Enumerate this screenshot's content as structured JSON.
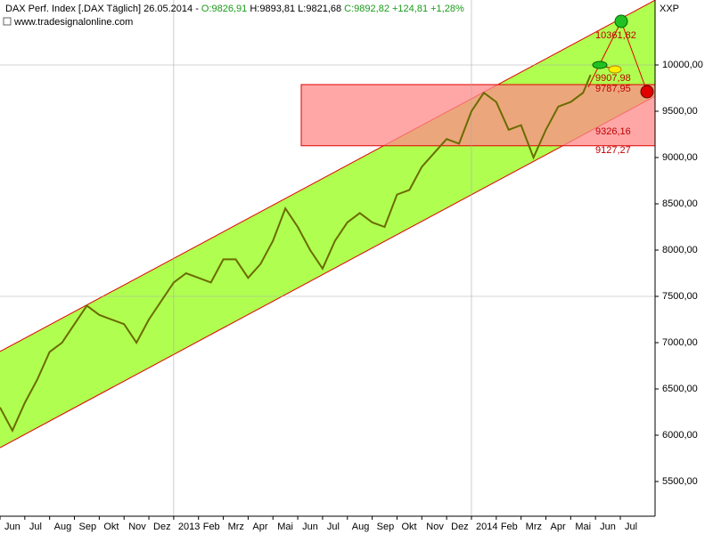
{
  "chart_data": {
    "type": "line",
    "title": [
      "DAX Perf. Index [.DAX  Täglich] 26.05.2014 - ",
      "O:9826,91",
      " H:9893,81 L:9821,68 ",
      "C:9892,82 +124,81 +1,28%"
    ],
    "subtitle": "www.tradesignalonline.com",
    "axis_label": "XXP",
    "xlim": [
      0,
      26.4
    ],
    "ylim": [
      5125,
      10702
    ],
    "xticks": [
      {
        "value": 0,
        "label": "Jun"
      },
      {
        "value": 1,
        "label": "Jul"
      },
      {
        "value": 2,
        "label": "Aug"
      },
      {
        "value": 3,
        "label": "Sep"
      },
      {
        "value": 4,
        "label": "Okt"
      },
      {
        "value": 5,
        "label": "Nov"
      },
      {
        "value": 6,
        "label": "Dez"
      },
      {
        "value": 7,
        "label": "2013"
      },
      {
        "value": 8,
        "label": "Feb"
      },
      {
        "value": 9,
        "label": "Mrz"
      },
      {
        "value": 10,
        "label": "Apr"
      },
      {
        "value": 11,
        "label": "Mai"
      },
      {
        "value": 12,
        "label": "Jun"
      },
      {
        "value": 13,
        "label": "Jul"
      },
      {
        "value": 14,
        "label": "Aug"
      },
      {
        "value": 15,
        "label": "Sep"
      },
      {
        "value": 16,
        "label": "Okt"
      },
      {
        "value": 17,
        "label": "Nov"
      },
      {
        "value": 18,
        "label": "Dez"
      },
      {
        "value": 19,
        "label": "2014"
      },
      {
        "value": 20,
        "label": "Feb"
      },
      {
        "value": 21,
        "label": "Mrz"
      },
      {
        "value": 22,
        "label": "Apr"
      },
      {
        "value": 23,
        "label": "Mai"
      },
      {
        "value": 24,
        "label": "Jun"
      },
      {
        "value": 25,
        "label": "Jul"
      }
    ],
    "yticks": [
      {
        "value": 5500,
        "label": "5500,00"
      },
      {
        "value": 6000,
        "label": "6000,00"
      },
      {
        "value": 6500,
        "label": "6500,00"
      },
      {
        "value": 7000,
        "label": "7000,00"
      },
      {
        "value": 7500,
        "label": "7500,00"
      },
      {
        "value": 8000,
        "label": "8000,00"
      },
      {
        "value": 8500,
        "label": "8500,00"
      },
      {
        "value": 9000,
        "label": "9000,00"
      },
      {
        "value": 9500,
        "label": "9500,00"
      },
      {
        "value": 10000,
        "label": "10000,00"
      }
    ],
    "hgrid": [
      7500,
      10000
    ],
    "vgrid": [
      7,
      19
    ],
    "series": [
      {
        "name": "DAX",
        "color": "#6b6b00",
        "x": [
          0,
          0.5,
          1,
          1.5,
          2,
          2.5,
          3,
          3.5,
          4,
          4.5,
          5,
          5.5,
          6,
          6.5,
          7,
          7.5,
          8,
          8.5,
          9,
          9.5,
          10,
          10.5,
          11,
          11.5,
          12,
          12.5,
          13,
          13.5,
          14,
          14.5,
          15,
          15.5,
          16,
          16.5,
          17,
          17.5,
          18,
          18.5,
          19,
          19.5,
          20,
          20.5,
          21,
          21.5,
          22,
          22.5,
          23,
          23.5,
          23.8
        ],
        "values": [
          6300,
          6050,
          6350,
          6600,
          6900,
          7000,
          7200,
          7400,
          7300,
          7250,
          7200,
          7000,
          7250,
          7450,
          7650,
          7750,
          7700,
          7650,
          7900,
          7900,
          7700,
          7850,
          8100,
          8450,
          8250,
          8000,
          7800,
          8100,
          8300,
          8400,
          8300,
          8250,
          8600,
          8650,
          8900,
          9050,
          9200,
          9150,
          9500,
          9700,
          9600,
          9300,
          9350,
          9000,
          9300,
          9550,
          9600,
          9700,
          9893
        ]
      }
    ],
    "channel": {
      "color": "#b0ff50",
      "x": [
        0,
        26.4
      ],
      "upper": [
        6904,
        10700
      ],
      "lower": [
        5865,
        9663
      ]
    },
    "zone": {
      "color": "#ff8a8a",
      "x_start": 12.14,
      "top": 9787.95,
      "bottom": 9127.27
    },
    "annotations": [
      "10361,82",
      "9907,98",
      "9787,95",
      "9326,16",
      "9127,27"
    ]
  }
}
